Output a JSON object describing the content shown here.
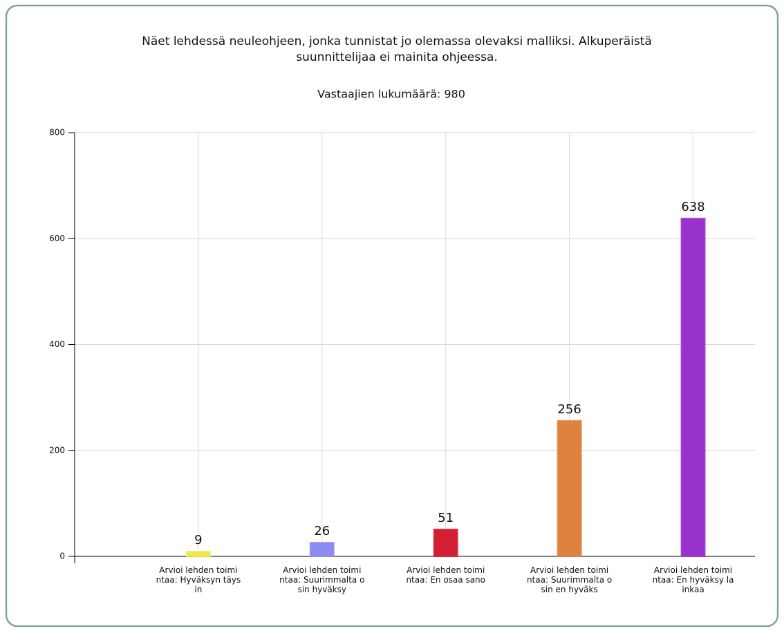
{
  "chart_data": {
    "type": "bar",
    "title": [
      "Näet lehdessä neuleohjeen, jonka tunnistat jo olemassa olevaksi malliksi. Alkuperäistä",
      "suunnittelijaa ei mainita ohjeessa."
    ],
    "subtitle": "Vastaajien lukumäärä: 980",
    "categories": [
      "Arvioi lehden toimintaa: Hyväksyn täysin",
      "Arvioi lehden toimintaa: Suurimmalta osin hyväksy",
      "Arvioi lehden toimintaa: En osaa sano",
      "Arvioi lehden toimintaa: Suurimmalta osin en hyväks",
      "Arvioi lehden toimintaa: En hyväksy lainkaa"
    ],
    "values": [
      9,
      26,
      51,
      256,
      638
    ],
    "colors": [
      "#f2e84a",
      "#8c8cf0",
      "#d41f32",
      "#e0823f",
      "#9a33cc"
    ],
    "ylim": [
      0,
      800
    ],
    "yticks": [
      0,
      200,
      400,
      600,
      800
    ],
    "grid": true
  }
}
